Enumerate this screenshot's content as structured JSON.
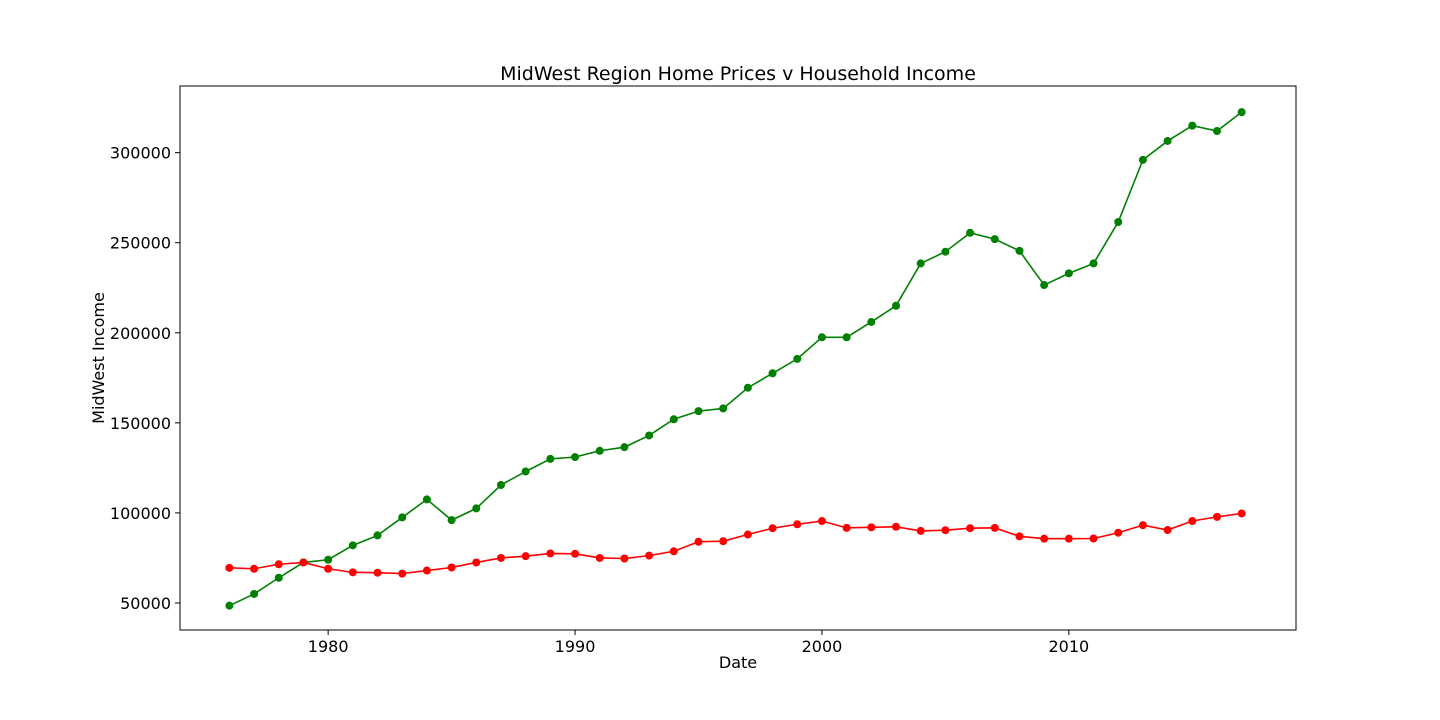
{
  "chart_data": {
    "type": "line",
    "title": "MidWest Region Home Prices v Household Income",
    "xlabel": "Date",
    "ylabel": "MidWest Income",
    "xlim": [
      1974,
      2019.2
    ],
    "ylim": [
      35000,
      337000
    ],
    "xticks": [
      1980,
      1990,
      2000,
      2010
    ],
    "yticks": [
      50000,
      100000,
      150000,
      200000,
      250000,
      300000
    ],
    "grid": false,
    "x": [
      1976,
      1977,
      1978,
      1979,
      1980,
      1981,
      1982,
      1983,
      1984,
      1985,
      1986,
      1987,
      1988,
      1989,
      1990,
      1991,
      1992,
      1993,
      1994,
      1995,
      1996,
      1997,
      1998,
      1999,
      2000,
      2001,
      2002,
      2003,
      2004,
      2005,
      2006,
      2007,
      2008,
      2009,
      2010,
      2011,
      2012,
      2013,
      2014,
      2015,
      2016,
      2017
    ],
    "series": [
      {
        "name": "Home Prices",
        "color": "#008000",
        "values": [
          48500,
          55000,
          64000,
          72500,
          74000,
          82000,
          87500,
          97500,
          107500,
          96000,
          102500,
          115500,
          123000,
          130000,
          131000,
          134500,
          136500,
          143000,
          152000,
          156500,
          158000,
          169500,
          177500,
          185500,
          197500,
          197500,
          206000,
          215000,
          238500,
          245000,
          255500,
          252000,
          245500,
          226500,
          233000,
          238500,
          261500,
          296000,
          306500,
          315000,
          312000,
          322500
        ]
      },
      {
        "name": "Household Income",
        "color": "#ff0000",
        "values": [
          69500,
          69000,
          71500,
          72500,
          69000,
          67000,
          66800,
          66300,
          68000,
          69700,
          72500,
          75000,
          76000,
          77500,
          77300,
          75000,
          74700,
          76300,
          78700,
          84000,
          84300,
          88000,
          91500,
          93700,
          95500,
          91700,
          92000,
          92300,
          90000,
          90400,
          91500,
          91700,
          87000,
          85700,
          85700,
          85800,
          89000,
          93200,
          90500,
          95500,
          97800,
          99700
        ]
      }
    ]
  }
}
